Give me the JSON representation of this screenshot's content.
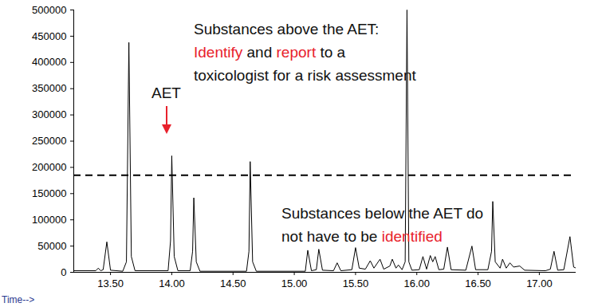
{
  "chart_data": {
    "type": "line",
    "x_label": "Time-->",
    "color": "#000000",
    "xlim": [
      13.2,
      17.3
    ],
    "xticks": [
      {
        "value": 13.5,
        "label": "13.50"
      },
      {
        "value": 14,
        "label": "14.00"
      },
      {
        "value": 14.5,
        "label": "14.50"
      },
      {
        "value": 15,
        "label": "15.00"
      },
      {
        "value": 15.5,
        "label": "15.50"
      },
      {
        "value": 16,
        "label": "16.00"
      },
      {
        "value": 16.5,
        "label": "16.50"
      },
      {
        "value": 17,
        "label": "17.00"
      }
    ],
    "ylim": [
      0,
      500000
    ],
    "yticks": [
      0,
      50000,
      100000,
      150000,
      200000,
      250000,
      300000,
      350000,
      400000,
      450000,
      500000
    ],
    "grid": false,
    "x": [
      13.2,
      13.38,
      13.4,
      13.42,
      13.44,
      13.47,
      13.5,
      13.6,
      13.63,
      13.65,
      13.67,
      13.7,
      13.97,
      13.99,
      14.0,
      14.02,
      14.05,
      14.15,
      14.17,
      14.18,
      14.2,
      14.23,
      14.61,
      14.63,
      14.64,
      14.66,
      14.69,
      15.09,
      15.11,
      15.14,
      15.18,
      15.2,
      15.23,
      15.32,
      15.35,
      15.38,
      15.47,
      15.5,
      15.53,
      15.58,
      15.62,
      15.65,
      15.7,
      15.73,
      15.78,
      15.8,
      15.83,
      15.85,
      15.88,
      15.905,
      15.92,
      15.935,
      15.96,
      16.02,
      16.05,
      16.08,
      16.11,
      16.13,
      16.15,
      16.18,
      16.22,
      16.25,
      16.28,
      16.4,
      16.45,
      16.48,
      16.58,
      16.61,
      16.62,
      16.64,
      16.68,
      16.7,
      16.73,
      16.76,
      16.79,
      16.84,
      16.88,
      17.05,
      17.09,
      17.12,
      17.15,
      17.2,
      17.25,
      17.28,
      17.3
    ],
    "values": [
      3000,
      3000,
      8000,
      3000,
      5000,
      58000,
      4000,
      2000,
      20000,
      438000,
      30000,
      3000,
      3000,
      60000,
      222000,
      30000,
      3000,
      3000,
      40000,
      142000,
      20000,
      2000,
      2000,
      40000,
      211000,
      20000,
      2000,
      2000,
      42000,
      3000,
      5000,
      44000,
      4000,
      3000,
      18000,
      3000,
      5000,
      47000,
      8000,
      6000,
      22000,
      8000,
      25000,
      6000,
      12000,
      25000,
      8000,
      14000,
      5000,
      20000,
      500000,
      20000,
      4000,
      5000,
      30000,
      6000,
      32000,
      20000,
      30000,
      5000,
      6000,
      48000,
      5000,
      4000,
      50000,
      5000,
      5000,
      40000,
      135000,
      20000,
      8000,
      25000,
      8000,
      18000,
      10000,
      12000,
      4000,
      3000,
      6000,
      40000,
      4000,
      5000,
      68000,
      10000,
      8000
    ],
    "threshold": {
      "label": "AET",
      "value": 185000,
      "line_style": "dashed"
    },
    "annotations": [
      {
        "lines": [
          [
            {
              "text": "Substances above the AET:"
            }
          ],
          [
            {
              "text": "Identify",
              "color": "#e8212c"
            },
            {
              "text": " and "
            },
            {
              "text": "report",
              "color": "#e8212c"
            },
            {
              "text": " to a"
            }
          ],
          [
            {
              "text": "toxicologist for a risk assessment"
            }
          ]
        ]
      },
      {
        "lines": [
          [
            {
              "text": "Substances below the AET do"
            }
          ],
          [
            {
              "text": "not have to be "
            },
            {
              "text": "identified",
              "color": "#e8212c"
            }
          ]
        ]
      }
    ]
  }
}
